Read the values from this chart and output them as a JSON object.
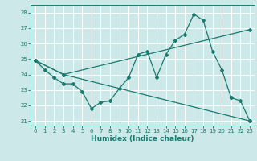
{
  "xlabel": "Humidex (Indice chaleur)",
  "bg_color": "#cce8e8",
  "grid_color": "#ffffff",
  "line_color": "#1a7a6e",
  "xlim": [
    -0.5,
    23.5
  ],
  "ylim": [
    20.7,
    28.5
  ],
  "yticks": [
    21,
    22,
    23,
    24,
    25,
    26,
    27,
    28
  ],
  "xticks": [
    0,
    1,
    2,
    3,
    4,
    5,
    6,
    7,
    8,
    9,
    10,
    11,
    12,
    13,
    14,
    15,
    16,
    17,
    18,
    19,
    20,
    21,
    22,
    23
  ],
  "line1_x": [
    0,
    1,
    2,
    3,
    4,
    5,
    6,
    7,
    8,
    9,
    10,
    11,
    12,
    13,
    14,
    15,
    16,
    17,
    18,
    19,
    20,
    21,
    22,
    23
  ],
  "line1_y": [
    24.9,
    24.3,
    23.8,
    23.4,
    23.4,
    22.9,
    21.8,
    22.2,
    22.3,
    23.1,
    23.8,
    25.3,
    25.5,
    23.8,
    25.3,
    26.2,
    26.6,
    27.9,
    27.5,
    25.5,
    24.3,
    22.5,
    22.3,
    21.0
  ],
  "line2_x": [
    0,
    3,
    23
  ],
  "line2_y": [
    24.9,
    24.0,
    26.9
  ],
  "line3_x": [
    0,
    3,
    23
  ],
  "line3_y": [
    24.9,
    24.0,
    21.0
  ]
}
